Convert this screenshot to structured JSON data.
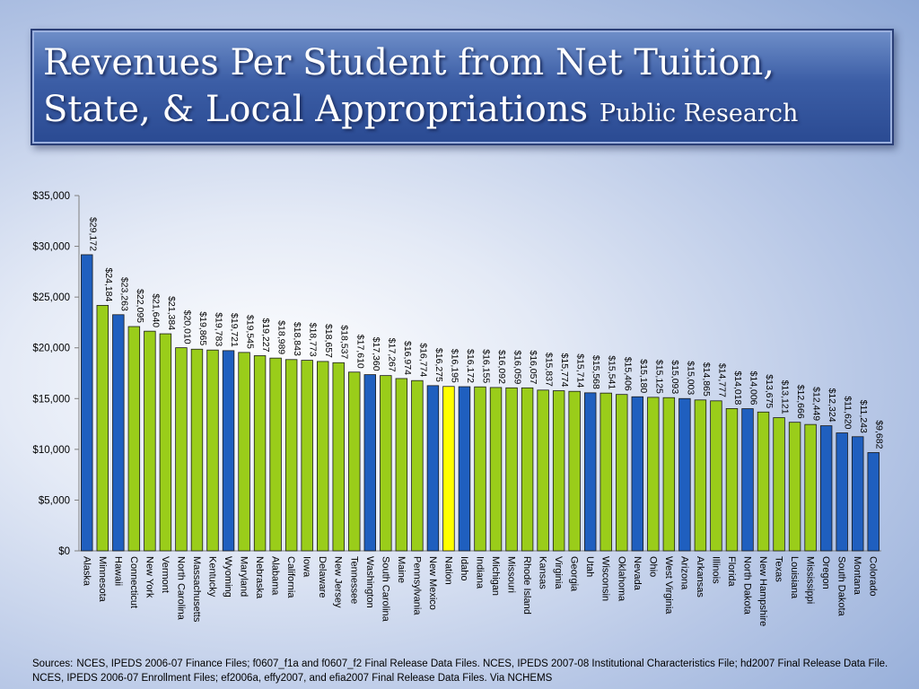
{
  "slide": {
    "title": "Revenues Per Student from Net Tuition, State, & Local Appropriations",
    "subtitle": "Public Research",
    "sources_label": "Sources:",
    "sources_text": "NCES, IPEDS 2006-07 Finance Files; f0607_f1a and f0607_f2 Final Release Data Files. NCES, IPEDS 2007-08 Institutional Characteristics File; hd2007 Final Release Data File. NCES, IPEDS 2006-07 Enrollment Files; ef2006a, effy2007, and efia2007 Final Release Data Files. Via NCHEMS"
  },
  "chart_data": {
    "type": "bar",
    "ylim": [
      0,
      35000
    ],
    "yticks": [
      0,
      5000,
      10000,
      15000,
      20000,
      25000,
      30000,
      35000
    ],
    "ytick_labels": [
      "$0",
      "$5,000",
      "$10,000",
      "$15,000",
      "$20,000",
      "$25,000",
      "$30,000",
      "$35,000"
    ],
    "categories": [
      "Alaska",
      "Minnesota",
      "Hawaii",
      "Connecticut",
      "New York",
      "Vermont",
      "North Carolina",
      "Massachusetts",
      "Kentucky",
      "Wyoming",
      "Maryland",
      "Nebraska",
      "Alabama",
      "California",
      "Iowa",
      "Delaware",
      "New Jersey",
      "Tennessee",
      "Washington",
      "South Carolina",
      "Maine",
      "Pennsylvania",
      "New Mexico",
      "Nation",
      "Idaho",
      "Indiana",
      "Michigan",
      "Missouri",
      "Rhode Island",
      "Kansas",
      "Virginia",
      "Georgia",
      "Utah",
      "Wisconsin",
      "Oklahoma",
      "Nevada",
      "Ohio",
      "West Virginia",
      "Arizona",
      "Arkansas",
      "Illinois",
      "Florida",
      "North Dakota",
      "New Hampshire",
      "Texas",
      "Louisiana",
      "Mississippi",
      "Oregon",
      "South Dakota",
      "Montana",
      "Colorado"
    ],
    "values": [
      29172,
      24184,
      23263,
      22095,
      21640,
      21384,
      20010,
      19865,
      19783,
      19721,
      19545,
      19227,
      18989,
      18843,
      18773,
      18657,
      18537,
      17610,
      17360,
      17267,
      16974,
      16774,
      16275,
      16195,
      16172,
      16155,
      16092,
      16059,
      16057,
      15837,
      15774,
      15714,
      15568,
      15541,
      15406,
      15180,
      15125,
      15093,
      15003,
      14865,
      14777,
      14018,
      14006,
      13675,
      13121,
      12666,
      12449,
      12324,
      11620,
      11243,
      9682
    ],
    "data_labels": [
      "$29,172",
      "$24,184",
      "$23,263",
      "$22,095",
      "$21,640",
      "$21,384",
      "$20,010",
      "$19,865",
      "$19,783",
      "$19,721",
      "$19,545",
      "$19,227",
      "$18,989",
      "$18,843",
      "$18,773",
      "$18,657",
      "$18,537",
      "$17,610",
      "$17,360",
      "$17,267",
      "$16,974",
      "$16,774",
      "$16,275",
      "$16,195",
      "$16,172",
      "$16,155",
      "$16,092",
      "$16,059",
      "$16,057",
      "$15,837",
      "$15,774",
      "$15,714",
      "$15,568",
      "$15,541",
      "$15,406",
      "$15,180",
      "$15,125",
      "$15,093",
      "$15,003",
      "$14,865",
      "$14,777",
      "$14,018",
      "$14,006",
      "$13,675",
      "$13,121",
      "$12,666",
      "$12,449",
      "$12,324",
      "$11,620",
      "$11,243",
      "$9,682"
    ],
    "bar_colors": [
      "blue",
      "green",
      "blue",
      "green",
      "green",
      "green",
      "green",
      "green",
      "green",
      "blue",
      "green",
      "green",
      "green",
      "green",
      "green",
      "green",
      "green",
      "green",
      "blue",
      "green",
      "green",
      "green",
      "blue",
      "yellow",
      "blue",
      "green",
      "green",
      "green",
      "green",
      "green",
      "green",
      "green",
      "blue",
      "green",
      "green",
      "blue",
      "green",
      "green",
      "blue",
      "green",
      "green",
      "green",
      "blue",
      "green",
      "green",
      "green",
      "green",
      "blue",
      "blue",
      "blue",
      "blue"
    ],
    "palette": {
      "blue": "#1f5fbf",
      "green": "#9acd1a",
      "yellow": "#ffff00",
      "outline": "#1a1a1a"
    },
    "grid": false,
    "legend": "none"
  }
}
